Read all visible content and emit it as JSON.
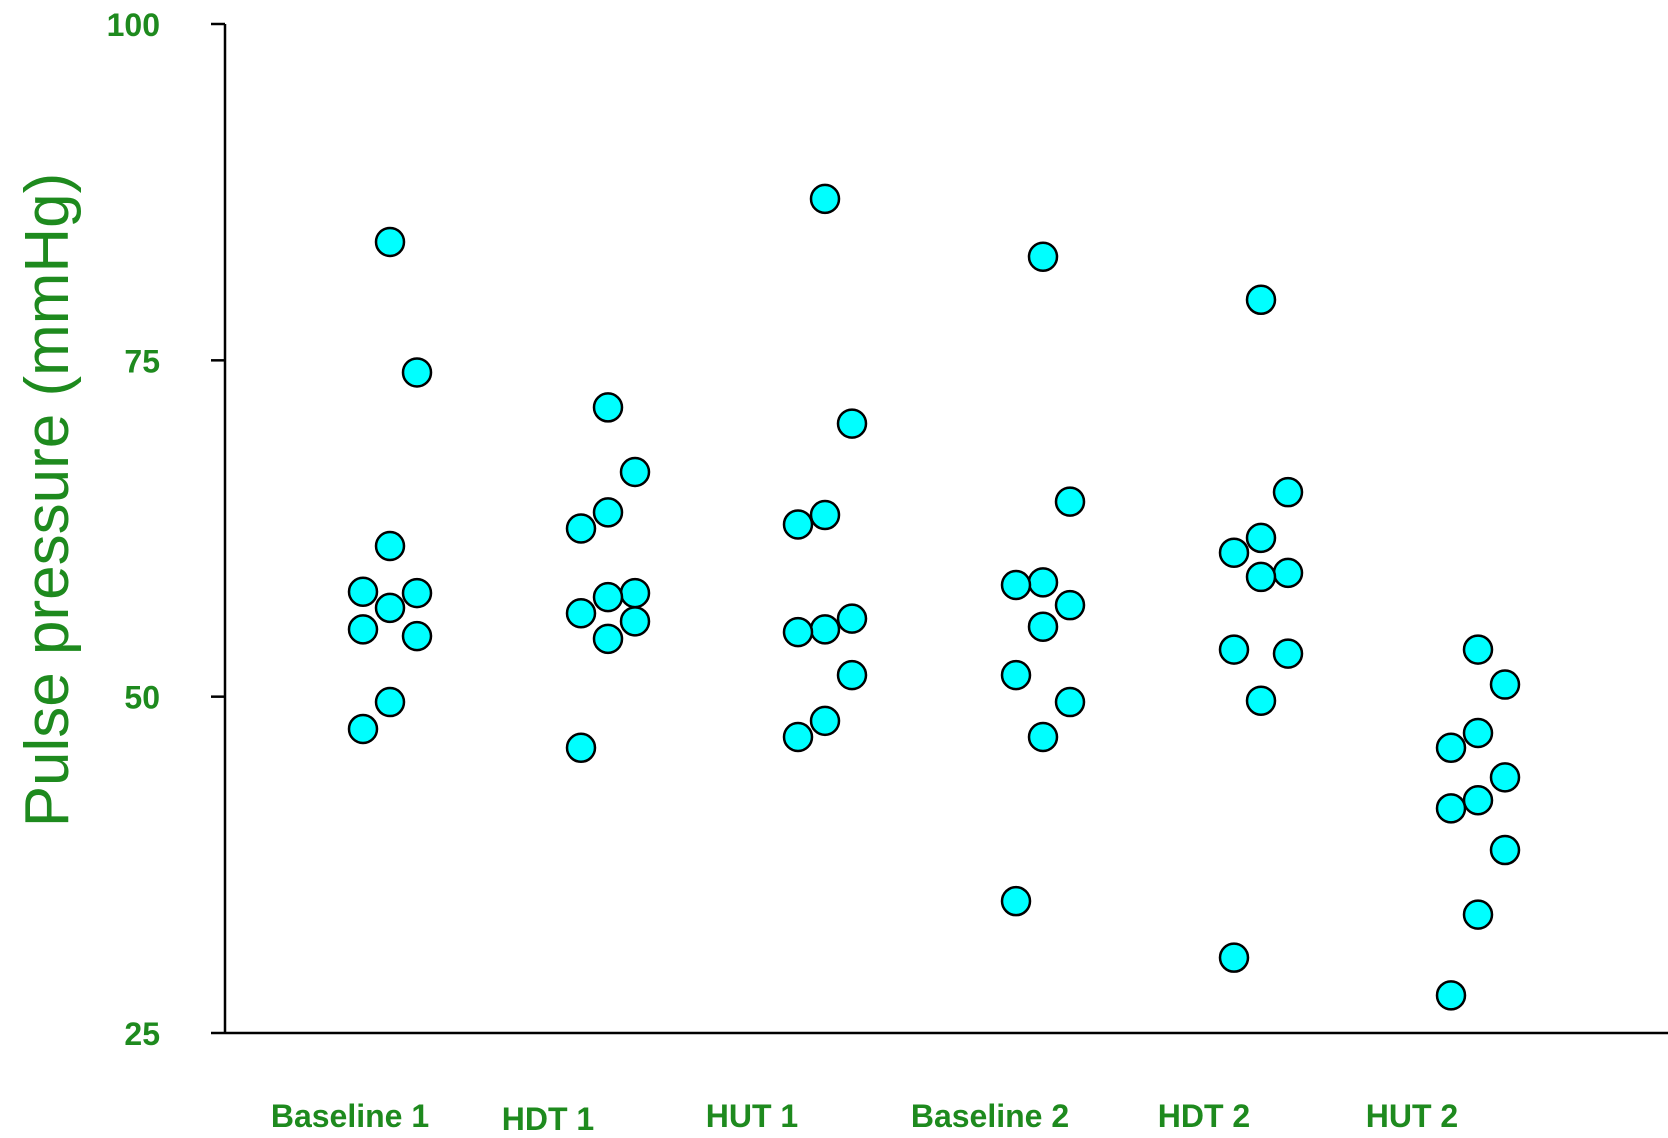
{
  "chart_data": {
    "type": "scatter",
    "title": "",
    "xlabel": "",
    "ylabel": "Pulse pressure (mmHg)",
    "ylim": [
      25,
      100
    ],
    "yticks": [
      "100",
      "75",
      "50",
      "25"
    ],
    "categories": [
      "Baseline 1",
      "HDT 1",
      "HUT 1",
      "Baseline 2",
      "HDT 2",
      "HUT 2"
    ],
    "grid": false,
    "colors": {
      "text": "#1e8a1e",
      "marker_fill": "#00ffff",
      "marker_stroke": "#000000",
      "axis": "#000000"
    },
    "points": [
      {
        "category": "Baseline 1",
        "offset": 0,
        "y": 83.8
      },
      {
        "category": "Baseline 1",
        "offset": 1,
        "y": 74.1
      },
      {
        "category": "Baseline 1",
        "offset": 0,
        "y": 61.2
      },
      {
        "category": "Baseline 1",
        "offset": -1,
        "y": 57.8
      },
      {
        "category": "Baseline 1",
        "offset": 1,
        "y": 57.7
      },
      {
        "category": "Baseline 1",
        "offset": 0,
        "y": 56.6
      },
      {
        "category": "Baseline 1",
        "offset": -1,
        "y": 55.0
      },
      {
        "category": "Baseline 1",
        "offset": 1,
        "y": 54.5
      },
      {
        "category": "Baseline 1",
        "offset": 0,
        "y": 49.6
      },
      {
        "category": "Baseline 1",
        "offset": -1,
        "y": 47.6
      },
      {
        "category": "HDT 1",
        "offset": 0,
        "y": 71.5
      },
      {
        "category": "HDT 1",
        "offset": 1,
        "y": 66.7
      },
      {
        "category": "HDT 1",
        "offset": 0,
        "y": 63.7
      },
      {
        "category": "HDT 1",
        "offset": -1,
        "y": 62.5
      },
      {
        "category": "HDT 1",
        "offset": 1,
        "y": 57.7
      },
      {
        "category": "HDT 1",
        "offset": 0,
        "y": 57.4
      },
      {
        "category": "HDT 1",
        "offset": -1,
        "y": 56.2
      },
      {
        "category": "HDT 1",
        "offset": 1,
        "y": 55.6
      },
      {
        "category": "HDT 1",
        "offset": 0,
        "y": 54.3
      },
      {
        "category": "HDT 1",
        "offset": -1,
        "y": 46.2
      },
      {
        "category": "HUT 1",
        "offset": 0,
        "y": 87.0
      },
      {
        "category": "HUT 1",
        "offset": 1,
        "y": 70.3
      },
      {
        "category": "HUT 1",
        "offset": 0,
        "y": 63.5
      },
      {
        "category": "HUT 1",
        "offset": -1,
        "y": 62.8
      },
      {
        "category": "HUT 1",
        "offset": 1,
        "y": 55.8
      },
      {
        "category": "HUT 1",
        "offset": 0,
        "y": 55.0
      },
      {
        "category": "HUT 1",
        "offset": -1,
        "y": 54.8
      },
      {
        "category": "HUT 1",
        "offset": 1,
        "y": 51.6
      },
      {
        "category": "HUT 1",
        "offset": 0,
        "y": 48.2
      },
      {
        "category": "HUT 1",
        "offset": -1,
        "y": 47.0
      },
      {
        "category": "Baseline 2",
        "offset": 0,
        "y": 82.7
      },
      {
        "category": "Baseline 2",
        "offset": 1,
        "y": 64.5
      },
      {
        "category": "Baseline 2",
        "offset": 0,
        "y": 58.5
      },
      {
        "category": "Baseline 2",
        "offset": -1,
        "y": 58.3
      },
      {
        "category": "Baseline 2",
        "offset": 1,
        "y": 56.8
      },
      {
        "category": "Baseline 2",
        "offset": 0,
        "y": 55.2
      },
      {
        "category": "Baseline 2",
        "offset": -1,
        "y": 51.6
      },
      {
        "category": "Baseline 2",
        "offset": 1,
        "y": 49.6
      },
      {
        "category": "Baseline 2",
        "offset": 0,
        "y": 47.0
      },
      {
        "category": "Baseline 2",
        "offset": -1,
        "y": 34.8
      },
      {
        "category": "HDT 2",
        "offset": 0,
        "y": 79.5
      },
      {
        "category": "HDT 2",
        "offset": 1,
        "y": 65.2
      },
      {
        "category": "HDT 2",
        "offset": 0,
        "y": 61.8
      },
      {
        "category": "HDT 2",
        "offset": -1,
        "y": 60.7
      },
      {
        "category": "HDT 2",
        "offset": 1,
        "y": 59.2
      },
      {
        "category": "HDT 2",
        "offset": 0,
        "y": 58.9
      },
      {
        "category": "HDT 2",
        "offset": -1,
        "y": 53.5
      },
      {
        "category": "HDT 2",
        "offset": 1,
        "y": 53.2
      },
      {
        "category": "HDT 2",
        "offset": 0,
        "y": 49.7
      },
      {
        "category": "HDT 2",
        "offset": -1,
        "y": 30.6
      },
      {
        "category": "HUT 2",
        "offset": 0,
        "y": 53.5
      },
      {
        "category": "HUT 2",
        "offset": 1,
        "y": 50.9
      },
      {
        "category": "HUT 2",
        "offset": 0,
        "y": 47.3
      },
      {
        "category": "HUT 2",
        "offset": -1,
        "y": 46.2
      },
      {
        "category": "HUT 2",
        "offset": 1,
        "y": 44.0
      },
      {
        "category": "HUT 2",
        "offset": 0,
        "y": 42.3
      },
      {
        "category": "HUT 2",
        "offset": -1,
        "y": 41.7
      },
      {
        "category": "HUT 2",
        "offset": 1,
        "y": 38.6
      },
      {
        "category": "HUT 2",
        "offset": 0,
        "y": 33.8
      },
      {
        "category": "HUT 2",
        "offset": -1,
        "y": 27.8
      }
    ]
  }
}
